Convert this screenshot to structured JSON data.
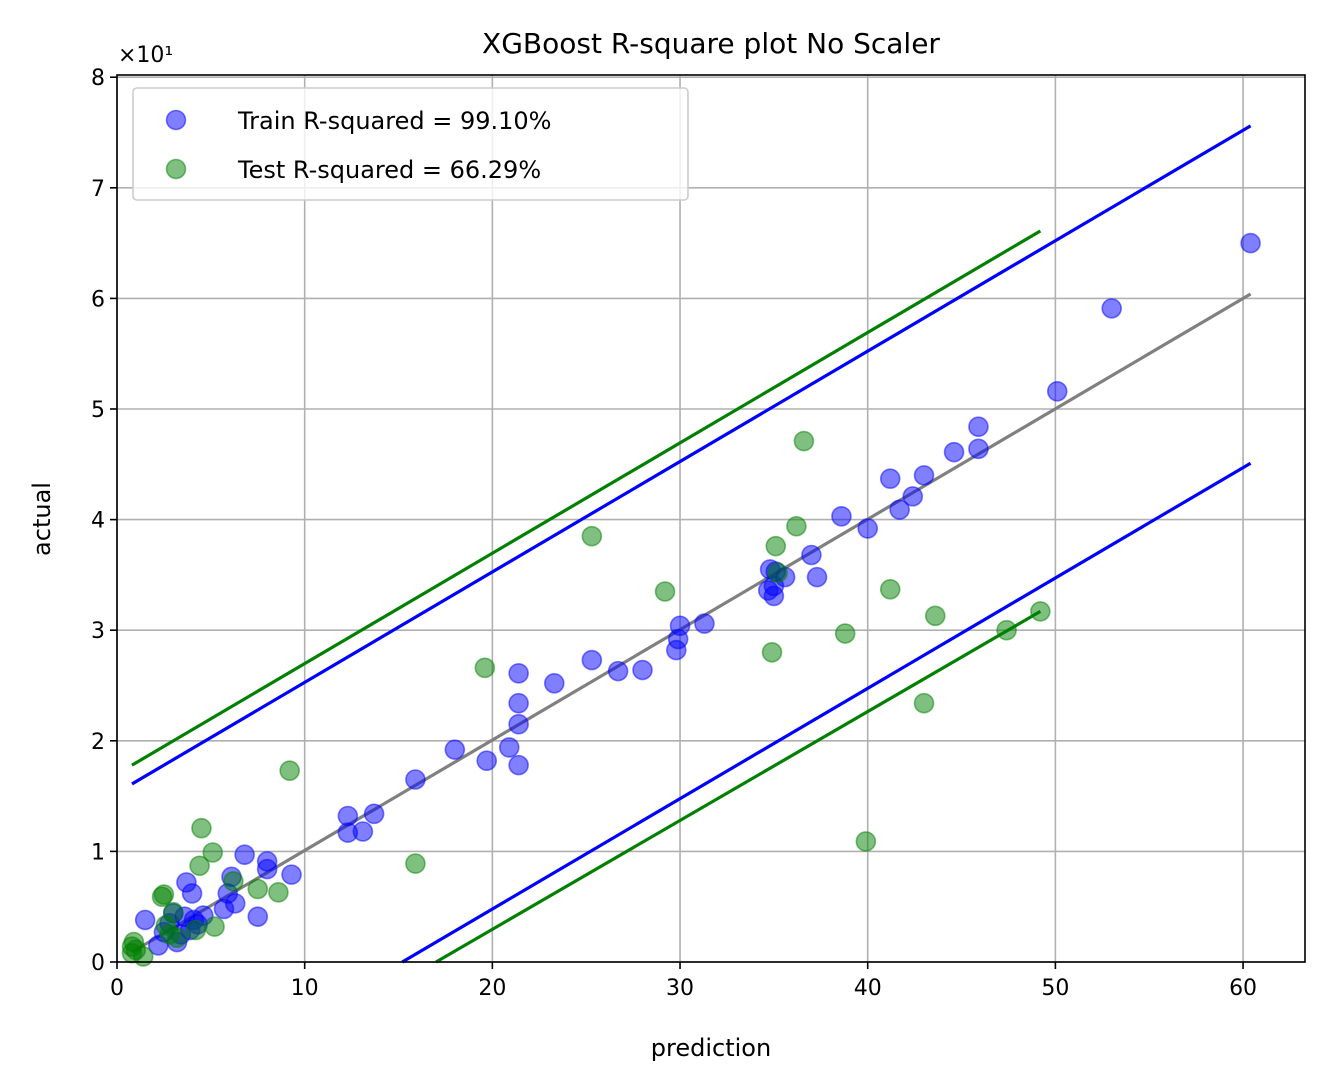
{
  "chart_data": {
    "type": "scatter",
    "title": "XGBoost R-square plot No Scaler",
    "xlabel": "prediction",
    "ylabel": "actual",
    "y_multiplier": "×10¹",
    "xlim": [
      0,
      63.3
    ],
    "ylim": [
      0,
      8.02
    ],
    "xticks": [
      0,
      10,
      20,
      30,
      40,
      50,
      60
    ],
    "yticks": [
      0,
      1,
      2,
      3,
      4,
      5,
      6,
      7,
      8
    ],
    "grid": true,
    "legend_position": "upper left",
    "colors": {
      "train": "#0000ff",
      "test": "#008000",
      "fit": "#808080"
    },
    "series": [
      {
        "name": "Train R-squared = 99.10%",
        "color": "#0000ff",
        "points": [
          [
            1.5,
            0.38
          ],
          [
            2.2,
            0.15
          ],
          [
            2.5,
            0.27
          ],
          [
            2.8,
            0.35
          ],
          [
            3.0,
            0.44
          ],
          [
            3.2,
            0.18
          ],
          [
            3.4,
            0.25
          ],
          [
            3.6,
            0.41
          ],
          [
            3.7,
            0.72
          ],
          [
            3.9,
            0.29
          ],
          [
            4.0,
            0.62
          ],
          [
            4.1,
            0.38
          ],
          [
            4.3,
            0.34
          ],
          [
            4.6,
            0.42
          ],
          [
            5.7,
            0.48
          ],
          [
            5.9,
            0.62
          ],
          [
            6.1,
            0.77
          ],
          [
            6.3,
            0.53
          ],
          [
            6.8,
            0.97
          ],
          [
            7.5,
            0.41
          ],
          [
            8.0,
            0.84
          ],
          [
            8.0,
            0.91
          ],
          [
            9.3,
            0.79
          ],
          [
            12.3,
            1.32
          ],
          [
            12.3,
            1.17
          ],
          [
            13.1,
            1.18
          ],
          [
            13.7,
            1.34
          ],
          [
            15.9,
            1.65
          ],
          [
            18.0,
            1.92
          ],
          [
            19.7,
            1.82
          ],
          [
            20.9,
            1.94
          ],
          [
            21.4,
            1.78
          ],
          [
            21.4,
            2.15
          ],
          [
            21.4,
            2.34
          ],
          [
            21.4,
            2.61
          ],
          [
            23.3,
            2.52
          ],
          [
            25.3,
            2.73
          ],
          [
            26.7,
            2.63
          ],
          [
            28.0,
            2.64
          ],
          [
            29.8,
            2.82
          ],
          [
            29.9,
            2.92
          ],
          [
            30.0,
            3.04
          ],
          [
            31.3,
            3.06
          ],
          [
            34.7,
            3.36
          ],
          [
            34.8,
            3.55
          ],
          [
            35.0,
            3.31
          ],
          [
            35.0,
            3.4
          ],
          [
            35.1,
            3.53
          ],
          [
            35.6,
            3.48
          ],
          [
            37.0,
            3.68
          ],
          [
            37.3,
            3.48
          ],
          [
            38.6,
            4.03
          ],
          [
            40.0,
            3.92
          ],
          [
            41.2,
            4.37
          ],
          [
            41.7,
            4.09
          ],
          [
            42.4,
            4.21
          ],
          [
            43.0,
            4.4
          ],
          [
            44.6,
            4.61
          ],
          [
            45.9,
            4.64
          ],
          [
            45.9,
            4.84
          ],
          [
            50.1,
            5.16
          ],
          [
            53.0,
            5.91
          ],
          [
            60.4,
            6.5
          ]
        ]
      },
      {
        "name": "Test R-squared = 66.29%",
        "color": "#008000",
        "points": [
          [
            0.8,
            0.08
          ],
          [
            0.8,
            0.14
          ],
          [
            0.9,
            0.18
          ],
          [
            1.0,
            0.11
          ],
          [
            1.4,
            0.05
          ],
          [
            2.4,
            0.59
          ],
          [
            2.5,
            0.61
          ],
          [
            2.6,
            0.33
          ],
          [
            2.8,
            0.25
          ],
          [
            3.0,
            0.45
          ],
          [
            3.2,
            0.22
          ],
          [
            4.2,
            0.29
          ],
          [
            4.4,
            0.87
          ],
          [
            4.5,
            1.21
          ],
          [
            5.1,
            0.99
          ],
          [
            5.2,
            0.32
          ],
          [
            6.2,
            0.73
          ],
          [
            7.5,
            0.66
          ],
          [
            8.6,
            0.63
          ],
          [
            9.2,
            1.73
          ],
          [
            15.9,
            0.89
          ],
          [
            19.6,
            2.66
          ],
          [
            25.3,
            3.85
          ],
          [
            29.2,
            3.35
          ],
          [
            34.9,
            2.8
          ],
          [
            35.1,
            3.76
          ],
          [
            35.2,
            3.52
          ],
          [
            36.2,
            3.94
          ],
          [
            36.6,
            4.71
          ],
          [
            38.8,
            2.97
          ],
          [
            39.9,
            1.09
          ],
          [
            41.2,
            3.37
          ],
          [
            43.0,
            2.34
          ],
          [
            43.6,
            3.13
          ],
          [
            47.4,
            3.0
          ],
          [
            49.2,
            3.17
          ]
        ]
      }
    ],
    "lines": [
      {
        "role": "fit",
        "color": "#808080",
        "x": [
          0.8,
          60.4
        ],
        "y": [
          0.09,
          6.04
        ]
      },
      {
        "role": "train-upper",
        "color": "#0000ff",
        "x": [
          0.8,
          60.4
        ],
        "y": [
          1.61,
          7.56
        ]
      },
      {
        "role": "train-lower",
        "color": "#0000ff",
        "x": [
          15.2,
          60.4
        ],
        "y": [
          0.0,
          4.51
        ]
      },
      {
        "role": "test-upper",
        "color": "#008000",
        "x": [
          0.8,
          49.2
        ],
        "y": [
          1.78,
          6.61
        ]
      },
      {
        "role": "test-lower",
        "color": "#008000",
        "x": [
          17.0,
          49.2
        ],
        "y": [
          0.0,
          3.17
        ]
      }
    ]
  }
}
